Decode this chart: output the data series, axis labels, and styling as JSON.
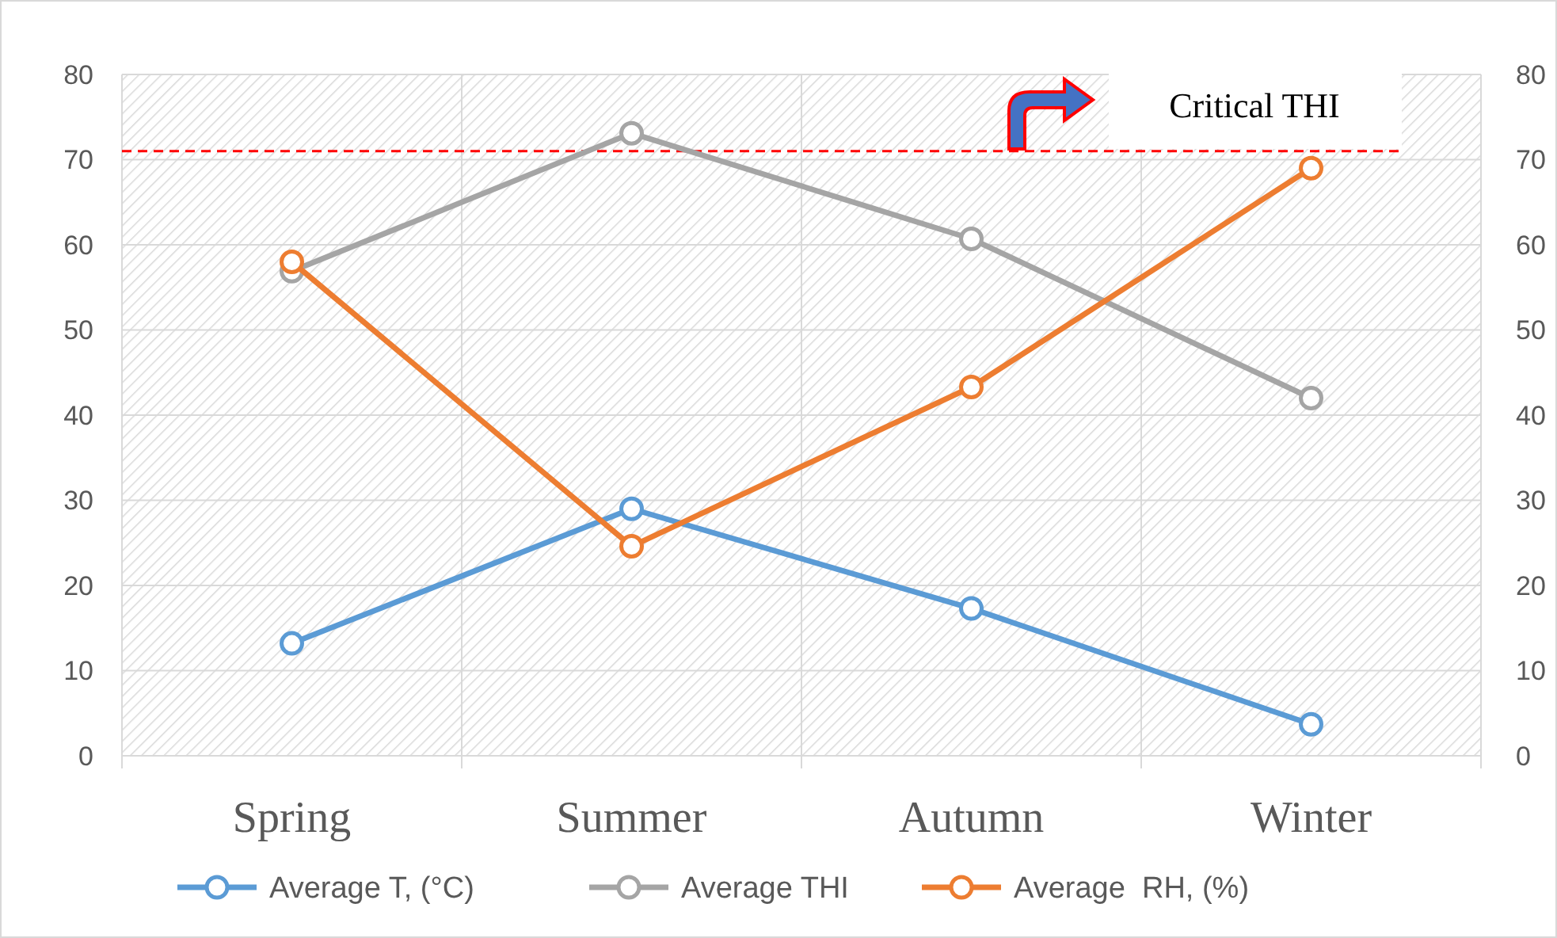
{
  "chart_data": {
    "type": "line",
    "categories": [
      "Spring",
      "Summer",
      "Autumn",
      "Winter"
    ],
    "series": [
      {
        "name": "Average T, (°C)",
        "color": "#5b9bd5",
        "values": [
          13.2,
          29.0,
          17.3,
          3.7
        ]
      },
      {
        "name": "Average THI",
        "color": "#a5a5a5",
        "values": [
          56.9,
          73.1,
          60.7,
          42.0
        ]
      },
      {
        "name": "Average  RH, (%)",
        "color": "#ed7d31",
        "values": [
          58.0,
          24.6,
          43.3,
          69.0
        ]
      }
    ],
    "ylim": [
      0,
      80
    ],
    "yticks": [
      0,
      10,
      20,
      30,
      40,
      50,
      60,
      70,
      80
    ],
    "y2lim": [
      0,
      80
    ],
    "y2ticks": [
      0,
      10,
      20,
      30,
      40,
      50,
      60,
      70,
      80
    ],
    "ref_lines": [
      {
        "axis": "y",
        "value": 71,
        "label": "Critical THI",
        "color": "#ff0000",
        "line_style": "dashed"
      }
    ],
    "grid": true,
    "legend": "bottom",
    "marker": "circle",
    "line_style": "solid"
  }
}
